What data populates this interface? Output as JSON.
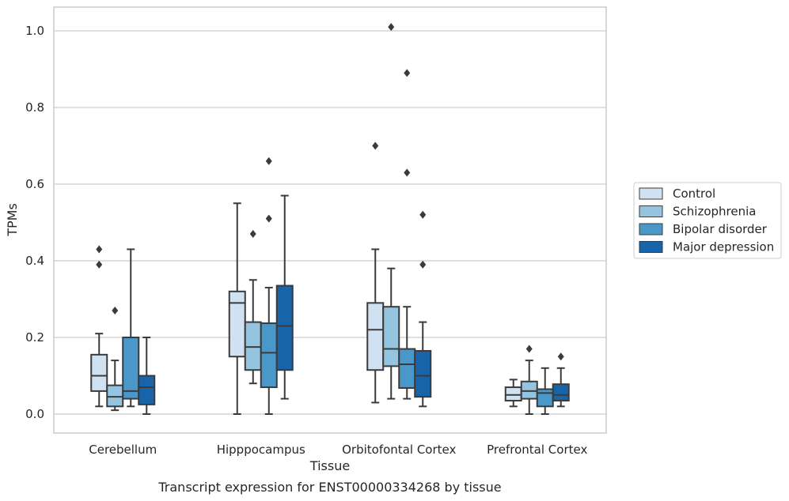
{
  "chart_data": {
    "type": "boxplot",
    "caption": "Transcript expression for ENST00000334268 by tissue",
    "xlabel": "Tissue",
    "ylabel": "TPMs",
    "ylim": [
      -0.048,
      1.062
    ],
    "yticks": [
      "0.0",
      "0.2",
      "0.4",
      "0.6",
      "0.8",
      "1.0"
    ],
    "grid": true,
    "legend_position": "right",
    "categories": [
      "Cerebellum",
      "Hipppocampus",
      "Orbitofontal Cortex",
      "Prefrontal Cortex"
    ],
    "series": [
      {
        "name": "Control",
        "color": "#d0e1f2",
        "boxes": [
          {
            "whislo": 0.02,
            "q1": 0.06,
            "med": 0.1,
            "q3": 0.155,
            "whishi": 0.21,
            "fliers": [
              0.39,
              0.43
            ]
          },
          {
            "whislo": 0.0,
            "q1": 0.15,
            "med": 0.29,
            "q3": 0.32,
            "whishi": 0.55,
            "fliers": []
          },
          {
            "whislo": 0.03,
            "q1": 0.115,
            "med": 0.22,
            "q3": 0.29,
            "whishi": 0.43,
            "fliers": [
              0.7
            ]
          },
          {
            "whislo": 0.02,
            "q1": 0.035,
            "med": 0.05,
            "q3": 0.07,
            "whishi": 0.09,
            "fliers": []
          }
        ]
      },
      {
        "name": "Schizophrenia",
        "color": "#94c4df",
        "boxes": [
          {
            "whislo": 0.01,
            "q1": 0.02,
            "med": 0.045,
            "q3": 0.075,
            "whishi": 0.14,
            "fliers": [
              0.27
            ]
          },
          {
            "whislo": 0.08,
            "q1": 0.115,
            "med": 0.175,
            "q3": 0.24,
            "whishi": 0.35,
            "fliers": [
              0.47
            ]
          },
          {
            "whislo": 0.04,
            "q1": 0.125,
            "med": 0.17,
            "q3": 0.28,
            "whishi": 0.38,
            "fliers": [
              1.01
            ]
          },
          {
            "whislo": 0.0,
            "q1": 0.04,
            "med": 0.06,
            "q3": 0.085,
            "whishi": 0.14,
            "fliers": [
              0.17
            ]
          }
        ]
      },
      {
        "name": "Bipolar disorder",
        "color": "#4a98c9",
        "boxes": [
          {
            "whislo": 0.02,
            "q1": 0.04,
            "med": 0.06,
            "q3": 0.2,
            "whishi": 0.43,
            "fliers": []
          },
          {
            "whislo": 0.0,
            "q1": 0.07,
            "med": 0.16,
            "q3": 0.237,
            "whishi": 0.33,
            "fliers": [
              0.51,
              0.66
            ]
          },
          {
            "whislo": 0.04,
            "q1": 0.068,
            "med": 0.13,
            "q3": 0.17,
            "whishi": 0.28,
            "fliers": [
              0.63,
              0.89
            ]
          },
          {
            "whislo": 0.0,
            "q1": 0.02,
            "med": 0.055,
            "q3": 0.065,
            "whishi": 0.12,
            "fliers": []
          }
        ]
      },
      {
        "name": "Major depression",
        "color": "#1764ab",
        "boxes": [
          {
            "whislo": 0.0,
            "q1": 0.025,
            "med": 0.07,
            "q3": 0.1,
            "whishi": 0.2,
            "fliers": []
          },
          {
            "whislo": 0.04,
            "q1": 0.115,
            "med": 0.23,
            "q3": 0.335,
            "whishi": 0.57,
            "fliers": []
          },
          {
            "whislo": 0.02,
            "q1": 0.045,
            "med": 0.1,
            "q3": 0.165,
            "whishi": 0.24,
            "fliers": [
              0.39,
              0.52
            ]
          },
          {
            "whislo": 0.02,
            "q1": 0.035,
            "med": 0.05,
            "q3": 0.078,
            "whishi": 0.12,
            "fliers": [
              0.15
            ]
          }
        ]
      }
    ]
  }
}
